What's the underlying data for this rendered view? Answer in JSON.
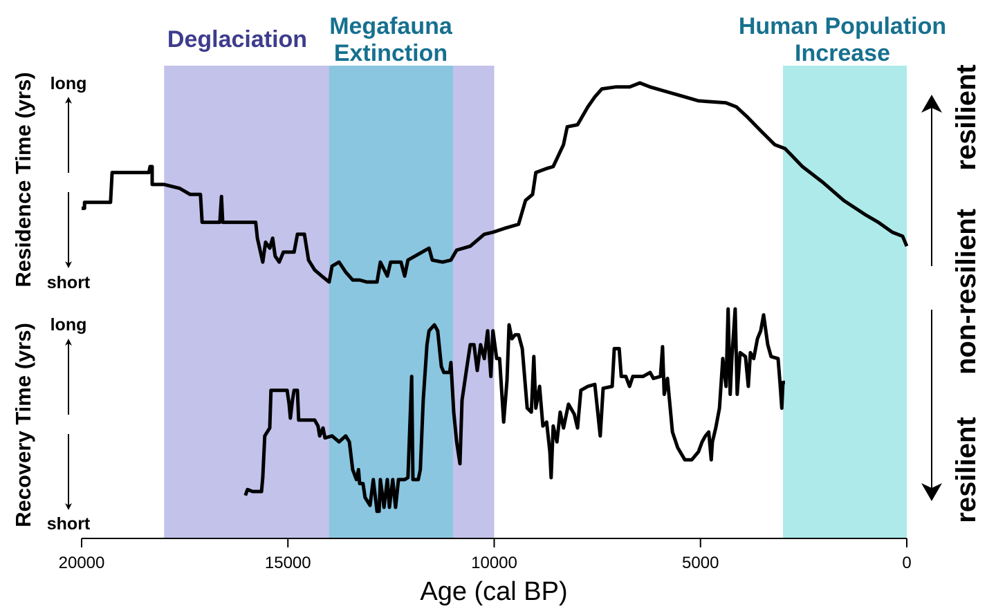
{
  "chart_data": [
    {
      "type": "line",
      "panel": "top",
      "ylabel": "Residence Time (yrs)",
      "ytick_labels": {
        "high": "long",
        "low": "short"
      },
      "ylim": [
        0,
        1
      ],
      "xlabel": "Age (cal BP)",
      "xlim": [
        20000,
        0
      ],
      "xticks": [
        20000,
        15000,
        10000,
        5000,
        0
      ],
      "xtick_labels": [
        "20000",
        "15000",
        "10000",
        "5000",
        "0"
      ],
      "right_labels": {
        "top": "resilient",
        "bottom": "non-resilient"
      },
      "series": [
        {
          "color": "#000000",
          "x": [
            20000,
            19930,
            19930,
            19300,
            19260,
            18370,
            18340,
            18290,
            18290,
            18000,
            17620,
            17370,
            17120,
            17080,
            16650,
            16610,
            16580,
            15780,
            15740,
            15610,
            15540,
            15440,
            15370,
            15310,
            15210,
            15110,
            14850,
            14770,
            14600,
            14500,
            14350,
            14180,
            14000,
            13930,
            13760,
            13600,
            13430,
            13260,
            13090,
            12840,
            12760,
            12590,
            12510,
            12260,
            12170,
            12090,
            11750,
            11580,
            11500,
            11250,
            11050,
            10910,
            10580,
            10240,
            10030,
            9740,
            9410,
            9240,
            9070,
            8990,
            8730,
            8570,
            8320,
            8230,
            7980,
            7730,
            7560,
            7390,
            7060,
            6720,
            6470,
            6220,
            5890,
            5380,
            5050,
            4380,
            4130,
            3870,
            3540,
            3200,
            2950,
            2530,
            2030,
            1530,
            1020,
            690,
            350,
            100,
            0
          ],
          "y": [
            0.37,
            0.37,
            0.4,
            0.4,
            0.55,
            0.55,
            0.58,
            0.58,
            0.49,
            0.49,
            0.47,
            0.44,
            0.44,
            0.3,
            0.3,
            0.43,
            0.3,
            0.3,
            0.22,
            0.1,
            0.2,
            0.17,
            0.22,
            0.13,
            0.1,
            0.15,
            0.15,
            0.24,
            0.24,
            0.11,
            0.06,
            0.03,
            0.0,
            0.08,
            0.1,
            0.05,
            0.01,
            0.01,
            0.0,
            0.0,
            0.1,
            0.03,
            0.1,
            0.1,
            0.03,
            0.11,
            0.15,
            0.17,
            0.11,
            0.1,
            0.11,
            0.16,
            0.18,
            0.24,
            0.25,
            0.27,
            0.29,
            0.41,
            0.44,
            0.55,
            0.57,
            0.58,
            0.69,
            0.78,
            0.79,
            0.88,
            0.93,
            0.97,
            0.98,
            0.98,
            1.0,
            0.98,
            0.96,
            0.93,
            0.91,
            0.9,
            0.88,
            0.83,
            0.76,
            0.69,
            0.67,
            0.58,
            0.5,
            0.41,
            0.34,
            0.3,
            0.25,
            0.23,
            0.18
          ]
        }
      ]
    },
    {
      "type": "line",
      "panel": "bottom",
      "ylabel": "Recovery Time (yrs)",
      "ytick_labels": {
        "high": "long",
        "low": "short"
      },
      "ylim": [
        0,
        1
      ],
      "right_labels": {
        "top": "non-resilient",
        "bottom": "resilient"
      },
      "series": [
        {
          "color": "#000000",
          "x": [
            16030,
            15980,
            15860,
            15640,
            15610,
            15560,
            15440,
            15410,
            15020,
            14970,
            14940,
            14890,
            14850,
            14770,
            14740,
            14350,
            14270,
            14230,
            14150,
            14100,
            13930,
            13760,
            13600,
            13510,
            13430,
            13340,
            13290,
            13260,
            13180,
            13130,
            13010,
            12930,
            12840,
            12790,
            12760,
            12670,
            12590,
            12540,
            12460,
            12390,
            12320,
            12170,
            12090,
            12000,
            11970,
            11840,
            11790,
            11720,
            11630,
            11580,
            11450,
            11370,
            11280,
            11220,
            11080,
            11050,
            10980,
            10910,
            10830,
            10780,
            10660,
            10580,
            10490,
            10410,
            10330,
            10240,
            10160,
            10080,
            10030,
            9940,
            9870,
            9770,
            9690,
            9640,
            9570,
            9490,
            9410,
            9320,
            9200,
            9100,
            9040,
            8990,
            8900,
            8820,
            8730,
            8650,
            8620,
            8570,
            8480,
            8400,
            8320,
            8200,
            8060,
            7980,
            7900,
            7730,
            7560,
            7430,
            7360,
            7140,
            7090,
            6970,
            6920,
            6810,
            6720,
            6640,
            6390,
            6220,
            6140,
            5970,
            5920,
            5880,
            5800,
            5720,
            5680,
            5550,
            5380,
            5210,
            5130,
            5050,
            4960,
            4880,
            4800,
            4740,
            4710,
            4630,
            4540,
            4460,
            4380,
            4330,
            4280,
            4240,
            4160,
            4110,
            4040,
            3910,
            3840,
            3790,
            3710,
            3620,
            3540,
            3470,
            3370,
            3290,
            3120,
            3070,
            3030,
            3000,
            2950
          ],
          "y": [
            0.14,
            0.17,
            0.16,
            0.16,
            0.23,
            0.44,
            0.48,
            0.67,
            0.67,
            0.6,
            0.53,
            0.62,
            0.67,
            0.67,
            0.52,
            0.52,
            0.49,
            0.44,
            0.48,
            0.43,
            0.44,
            0.41,
            0.44,
            0.41,
            0.27,
            0.22,
            0.27,
            0.2,
            0.2,
            0.13,
            0.09,
            0.22,
            0.06,
            0.06,
            0.22,
            0.08,
            0.22,
            0.08,
            0.22,
            0.08,
            0.22,
            0.22,
            0.23,
            0.74,
            0.22,
            0.22,
            0.27,
            0.62,
            0.9,
            0.97,
            1.0,
            0.97,
            0.79,
            0.76,
            0.76,
            0.81,
            0.56,
            0.41,
            0.3,
            0.62,
            0.79,
            0.9,
            0.9,
            0.77,
            0.9,
            0.83,
            0.97,
            0.74,
            0.97,
            0.83,
            0.83,
            0.51,
            0.72,
            1.0,
            0.93,
            0.95,
            0.95,
            0.88,
            0.58,
            0.56,
            0.84,
            0.58,
            0.69,
            0.49,
            0.51,
            0.36,
            0.23,
            0.49,
            0.41,
            0.56,
            0.48,
            0.6,
            0.55,
            0.48,
            0.67,
            0.69,
            0.7,
            0.44,
            0.68,
            0.69,
            0.88,
            0.88,
            0.74,
            0.74,
            0.69,
            0.74,
            0.74,
            0.76,
            0.73,
            0.74,
            0.89,
            0.65,
            0.73,
            0.55,
            0.46,
            0.38,
            0.32,
            0.32,
            0.34,
            0.36,
            0.41,
            0.44,
            0.46,
            0.32,
            0.41,
            0.48,
            0.58,
            0.83,
            0.69,
            1.08,
            0.65,
            0.83,
            1.08,
            0.65,
            0.86,
            0.84,
            0.69,
            0.86,
            0.83,
            0.93,
            0.97,
            1.05,
            0.9,
            0.84,
            0.83,
            0.7,
            0.58,
            0.71,
            0.71
          ]
        }
      ]
    }
  ],
  "intervals": [
    {
      "label": "Deglaciation",
      "start": 18000,
      "end": 10000,
      "fill": "#c2c2ea",
      "text_color": "#3e3c8c"
    },
    {
      "label_lines": [
        "Megafauna",
        "Extinction"
      ],
      "start": 14000,
      "end": 11000,
      "fill": "#8ac6e0",
      "text_color": "#17708f"
    },
    {
      "label_lines": [
        "Human Population",
        "Increase"
      ],
      "start": 3000,
      "end": 0,
      "fill": "#aeeaea",
      "text_color": "#17708f"
    }
  ]
}
